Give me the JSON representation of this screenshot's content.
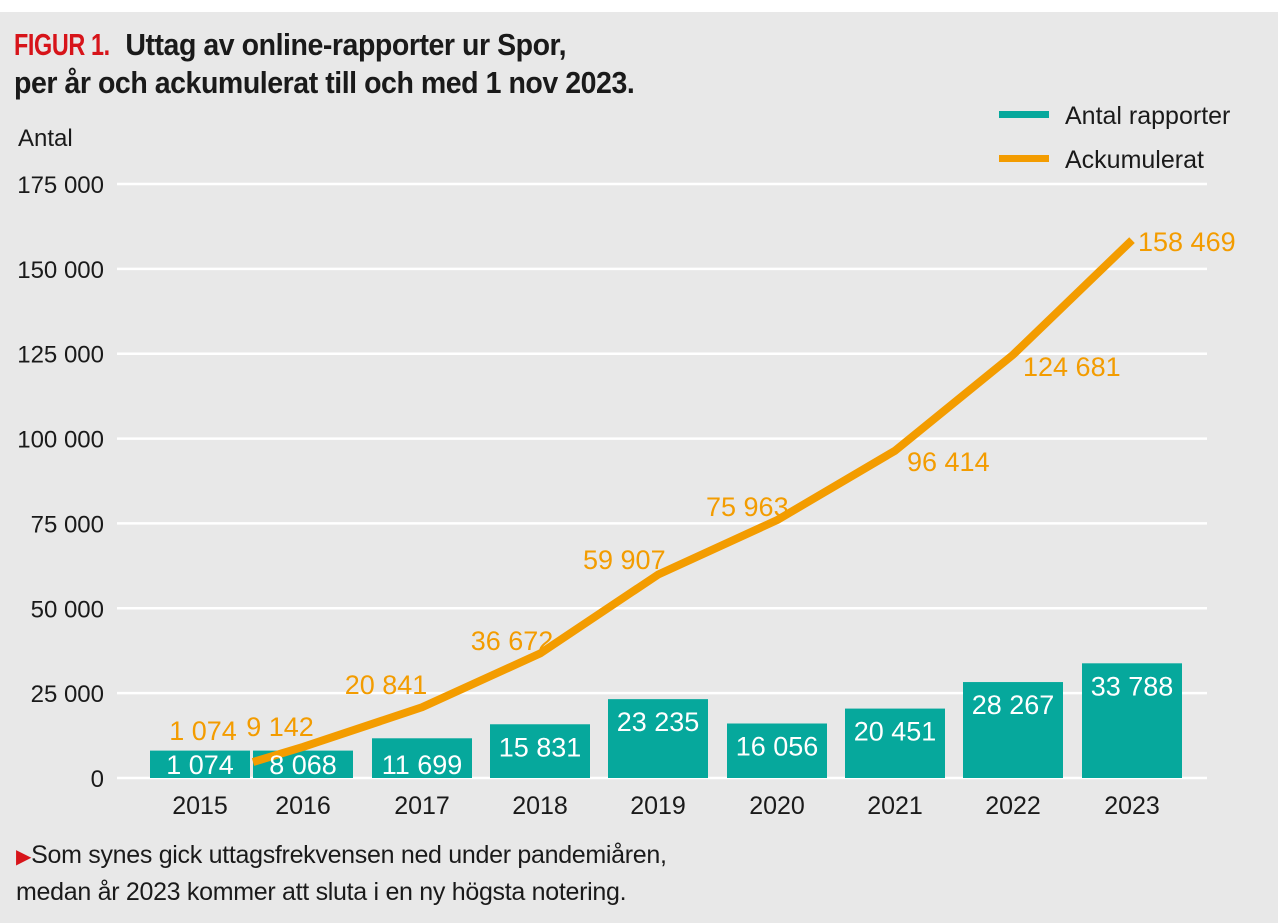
{
  "header": {
    "figure_label": "FIGUR 1.",
    "title_line1": "Uttag av online-rapporter ur Spor,",
    "title_line2": "per år och ackumulerat till och med 1 nov 2023."
  },
  "footnote": {
    "marker_icon": "triangle-right-icon",
    "line1": "Som synes gick uttagsfrekvensen ned under pandemiåren,",
    "line2": "medan år 2023 kommer att sluta i en ny högsta notering."
  },
  "colors": {
    "bar": "#06a89c",
    "line": "#f39c00",
    "figure_label": "#d7141a",
    "background": "#e8e8e8",
    "grid": "#ffffff"
  },
  "chart_data": {
    "type": "bar",
    "title": "Uttag av online-rapporter ur Spor, per år och ackumulerat till och med 1 nov 2023.",
    "xlabel": "",
    "ylabel": "Antal",
    "ylim": [
      0,
      175000
    ],
    "yticks": [
      0,
      25000,
      50000,
      75000,
      100000,
      125000,
      150000,
      175000
    ],
    "ytick_labels": [
      "0",
      "25 000",
      "50 000",
      "75 000",
      "100 000",
      "125 000",
      "150 000",
      "175 000"
    ],
    "grid": true,
    "legend_position": "top-right",
    "categories": [
      "2015",
      "2016",
      "2017",
      "2018",
      "2019",
      "2020",
      "2021",
      "2022",
      "2023"
    ],
    "series": [
      {
        "name": "Antal rapporter",
        "type": "bar",
        "values": [
          1074,
          8068,
          11699,
          15831,
          23235,
          16056,
          20451,
          28267,
          33788
        ],
        "labels": [
          "1 074",
          "8 068",
          "11 699",
          "15 831",
          "23 235",
          "16 056",
          "20 451",
          "28 267",
          "33 788"
        ]
      },
      {
        "name": "Ackumulerat",
        "type": "line",
        "values": [
          1074,
          9142,
          20841,
          36672,
          59907,
          75963,
          96414,
          124681,
          158469
        ],
        "labels": [
          "1 074",
          "9 142",
          "20 841",
          "36 672",
          "59 907",
          "75 963",
          "96 414",
          "124 681",
          "158 469"
        ]
      }
    ]
  }
}
